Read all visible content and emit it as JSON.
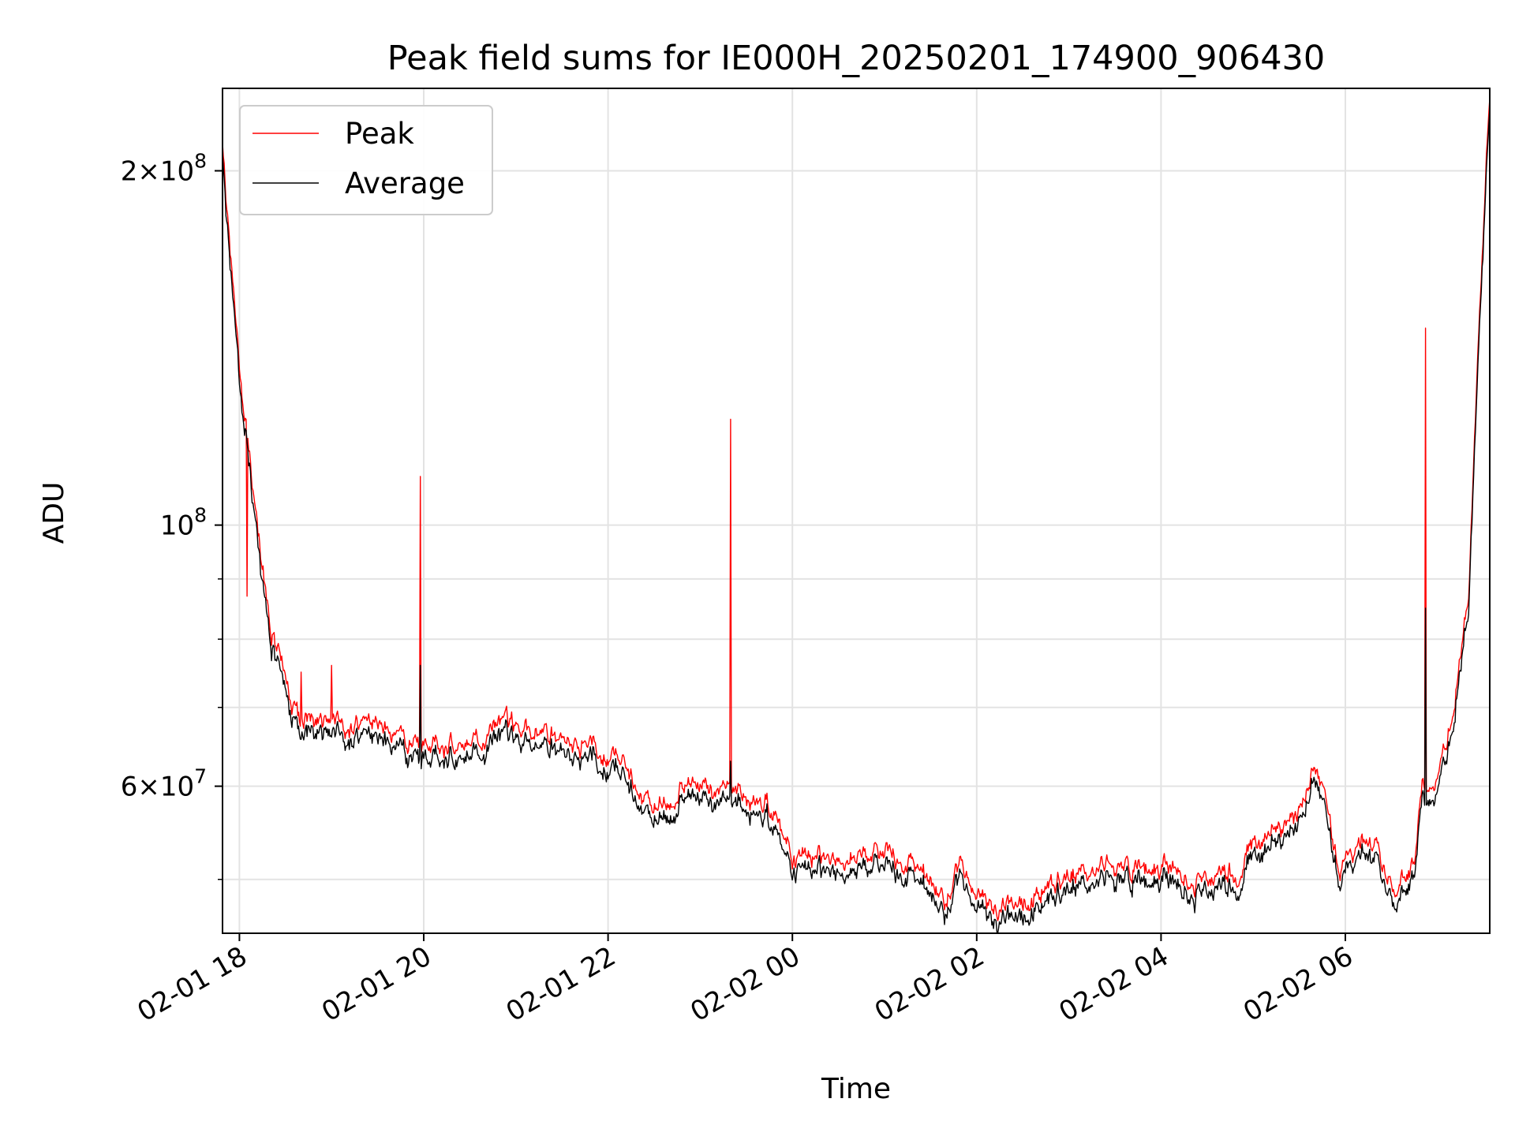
{
  "chart_data": {
    "type": "line",
    "title": "Peak field sums for IE000H_20250201_174900_906430",
    "xlabel": "Time",
    "ylabel": "ADU",
    "yscale": "log",
    "grid": true,
    "legend_placement": "upper-left",
    "xlim": [
      "2025-02-01T17:49",
      "2025-02-02T07:34"
    ],
    "ylim": [
      45000000,
      235000000
    ],
    "x_ticks": [
      {
        "time": "2025-02-01T18:00",
        "label": "02-01 18"
      },
      {
        "time": "2025-02-01T20:00",
        "label": "02-01 20"
      },
      {
        "time": "2025-02-01T22:00",
        "label": "02-01 22"
      },
      {
        "time": "2025-02-02T00:00",
        "label": "02-02 00"
      },
      {
        "time": "2025-02-02T02:00",
        "label": "02-02 02"
      },
      {
        "time": "2025-02-02T04:00",
        "label": "02-02 04"
      },
      {
        "time": "2025-02-02T06:00",
        "label": "02-02 06"
      }
    ],
    "y_ticks_major": [
      {
        "value": 60000000,
        "mantissa": "6",
        "exponent": "7"
      },
      {
        "value": 100000000,
        "mantissa": "",
        "exponent": "8"
      },
      {
        "value": 200000000,
        "mantissa": "2",
        "exponent": "8"
      }
    ],
    "y_ticks_minor": [
      50000000,
      70000000,
      80000000,
      90000000
    ],
    "series": [
      {
        "name": "Peak",
        "color": "#ff0000",
        "baseline": [
          [
            "2025-02-01T17:49",
            212000000
          ],
          [
            "2025-02-01T17:55",
            165000000
          ],
          [
            "2025-02-01T18:00",
            140000000
          ],
          [
            "2025-02-01T18:10",
            103000000
          ],
          [
            "2025-02-01T18:20",
            82000000
          ],
          [
            "2025-02-01T18:30",
            74000000
          ],
          [
            "2025-02-01T18:40",
            68000000
          ],
          [
            "2025-02-01T18:50",
            68500000
          ],
          [
            "2025-02-01T19:10",
            67000000
          ],
          [
            "2025-02-01T19:30",
            68000000
          ],
          [
            "2025-02-01T19:50",
            65500000
          ],
          [
            "2025-02-01T20:30",
            65000000
          ],
          [
            "2025-02-01T20:50",
            67500000
          ],
          [
            "2025-02-01T21:20",
            67000000
          ],
          [
            "2025-02-01T21:40",
            65000000
          ],
          [
            "2025-02-01T22:10",
            63500000
          ],
          [
            "2025-02-01T22:20",
            59000000
          ],
          [
            "2025-02-01T22:40",
            58000000
          ],
          [
            "2025-02-01T22:50",
            60000000
          ],
          [
            "2025-02-01T23:30",
            59000000
          ],
          [
            "2025-02-01T23:50",
            57000000
          ],
          [
            "2025-02-02T00:00",
            52000000
          ],
          [
            "2025-02-02T00:40",
            52000000
          ],
          [
            "2025-02-02T01:00",
            52500000
          ],
          [
            "2025-02-02T01:20",
            51500000
          ],
          [
            "2025-02-02T01:40",
            48000000
          ],
          [
            "2025-02-02T01:50",
            51500000
          ],
          [
            "2025-02-02T02:00",
            48500000
          ],
          [
            "2025-02-02T02:15",
            47000000
          ],
          [
            "2025-02-02T02:40",
            48500000
          ],
          [
            "2025-02-02T03:00",
            50500000
          ],
          [
            "2025-02-02T03:30",
            51500000
          ],
          [
            "2025-02-02T04:00",
            51000000
          ],
          [
            "2025-02-02T04:30",
            49500000
          ],
          [
            "2025-02-02T04:40",
            51500000
          ],
          [
            "2025-02-02T04:50",
            50000000
          ],
          [
            "2025-02-02T05:00",
            54000000
          ],
          [
            "2025-02-02T05:30",
            57000000
          ],
          [
            "2025-02-02T05:40",
            63000000
          ],
          [
            "2025-02-02T05:50",
            57000000
          ],
          [
            "2025-02-02T05:55",
            51000000
          ],
          [
            "2025-02-02T06:10",
            53500000
          ],
          [
            "2025-02-02T06:20",
            54000000
          ],
          [
            "2025-02-02T06:30",
            49000000
          ],
          [
            "2025-02-02T06:45",
            51000000
          ],
          [
            "2025-02-02T06:50",
            60000000
          ],
          [
            "2025-02-02T07:00",
            60500000
          ],
          [
            "2025-02-02T07:10",
            70000000
          ],
          [
            "2025-02-02T07:20",
            86000000
          ],
          [
            "2025-02-02T07:30",
            180000000
          ],
          [
            "2025-02-02T07:34",
            232000000
          ]
        ],
        "spikes": [
          [
            "2025-02-01T18:05",
            87000000
          ],
          [
            "2025-02-01T18:40",
            75000000
          ],
          [
            "2025-02-01T19:00",
            76000000
          ],
          [
            "2025-02-01T19:58",
            110000000
          ],
          [
            "2025-02-01T23:20",
            123000000
          ],
          [
            "2025-02-02T06:52",
            147000000
          ]
        ]
      },
      {
        "name": "Average",
        "color": "#000000",
        "offset_fraction": -0.025,
        "spikes": [
          [
            "2025-02-01T19:58",
            76000000
          ],
          [
            "2025-02-01T23:20",
            63000000
          ],
          [
            "2025-02-02T06:52",
            85000000
          ]
        ]
      }
    ]
  }
}
